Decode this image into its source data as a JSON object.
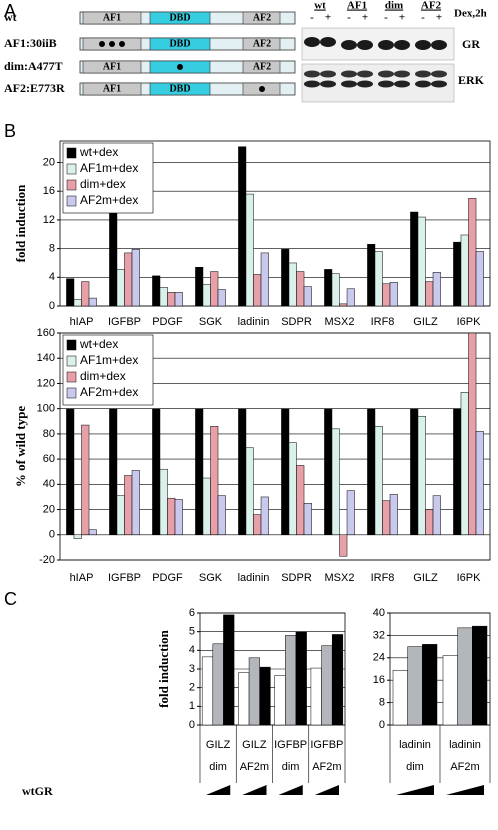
{
  "panels": [
    "A",
    "B",
    "C"
  ],
  "constructs": [
    {
      "label": "wt",
      "af1": "AF1",
      "dbd": "DBD",
      "af2": "AF2"
    },
    {
      "label": "AF1:30iiB",
      "dbd": "DBD",
      "af2": "AF2"
    },
    {
      "label": "dim:A477T",
      "af1": "AF1",
      "af2": "AF2"
    },
    {
      "label": "AF2:E773R",
      "af1": "AF1",
      "dbd": "DBD"
    }
  ],
  "blot": {
    "lanes": [
      "wt",
      "AF1",
      "dim",
      "AF2"
    ],
    "dex": [
      "-",
      "+"
    ],
    "treatment": "Dex,2h",
    "rows": [
      "GR",
      "ERK"
    ]
  },
  "wedge_label": "wtGR",
  "chart_data": [
    {
      "type": "bar",
      "y_label": "fold induction",
      "categories": [
        "hIAP",
        "IGFBP",
        "PDGF",
        "SGK",
        "ladinin",
        "SDPR",
        "MSX2",
        "IRF8",
        "GILZ",
        "I6PK"
      ],
      "series": [
        {
          "name": "wt+dex",
          "color": "#000000",
          "values": [
            3.8,
            14.5,
            4.2,
            5.4,
            22.2,
            7.9,
            5.1,
            8.6,
            13.1,
            8.9
          ]
        },
        {
          "name": "AF1m+dex",
          "color": "#daf0ea",
          "values": [
            0.9,
            5.1,
            2.6,
            3.0,
            15.6,
            6.0,
            4.5,
            7.6,
            12.4,
            9.9
          ]
        },
        {
          "name": "dim+dex",
          "color": "#e7a0a8",
          "values": [
            3.4,
            7.4,
            1.9,
            4.8,
            4.4,
            4.8,
            0.3,
            3.1,
            3.4,
            15.0
          ]
        },
        {
          "name": "AF2m+dex",
          "color": "#c9c9ee",
          "values": [
            1.1,
            7.9,
            1.9,
            2.3,
            7.4,
            2.7,
            2.4,
            3.3,
            4.7,
            7.6
          ]
        }
      ],
      "ylim": [
        0,
        23
      ],
      "yticks": [
        0,
        4,
        8,
        12,
        16,
        20
      ],
      "grid": true,
      "legend": "upper left"
    },
    {
      "type": "bar",
      "y_label": "% of wild type",
      "categories": [
        "hIAP",
        "IGFBP",
        "PDGF",
        "SGK",
        "ladinin",
        "SDPR",
        "MSX2",
        "IRF8",
        "GILZ",
        "I6PK"
      ],
      "series": [
        {
          "name": "wt+dex",
          "color": "#000000",
          "values": [
            100,
            100,
            100,
            100,
            100,
            100,
            100,
            100,
            100,
            100
          ]
        },
        {
          "name": "AF1m+dex",
          "color": "#daf0ea",
          "values": [
            -3,
            31,
            52,
            45,
            69,
            73,
            84,
            86,
            94,
            113
          ]
        },
        {
          "name": "dim+dex",
          "color": "#e7a0a8",
          "values": [
            87,
            47,
            29,
            86,
            16,
            55,
            -17,
            27,
            20,
            160
          ]
        },
        {
          "name": "AF2m+dex",
          "color": "#c9c9ee",
          "values": [
            4,
            51,
            28,
            31,
            30,
            25,
            35,
            32,
            31,
            82
          ]
        }
      ],
      "ylim": [
        -20,
        160
      ],
      "yticks": [
        -20,
        0,
        20,
        40,
        60,
        80,
        100,
        120,
        140,
        160
      ],
      "grid": true,
      "legend": "upper left"
    },
    {
      "type": "bar",
      "y_label": "fold induction",
      "categories": [
        "GILZ",
        "GILZ",
        "IGFBP",
        "IGFBP"
      ],
      "groups": [
        "dim",
        "AF2m",
        "dim",
        "AF2m"
      ],
      "series": [
        {
          "color": "#ffffff",
          "values": [
            3.65,
            2.8,
            2.65,
            3.05
          ]
        },
        {
          "color": "#b3b6ba",
          "values": [
            4.35,
            3.6,
            4.8,
            4.25
          ]
        },
        {
          "color": "#000000",
          "values": [
            5.9,
            3.1,
            5.0,
            4.85
          ]
        }
      ],
      "ylim": [
        0,
        6
      ],
      "yticks": [
        0,
        1,
        2,
        3,
        4,
        5,
        6
      ],
      "grid": true
    },
    {
      "type": "bar",
      "categories": [
        "ladinin",
        "ladinin"
      ],
      "groups": [
        "dim",
        "AF2m"
      ],
      "series": [
        {
          "color": "#ffffff",
          "values": [
            19.5,
            24.8
          ]
        },
        {
          "color": "#b3b6ba",
          "values": [
            28,
            34.7
          ]
        },
        {
          "color": "#000000",
          "values": [
            28.8,
            35.3
          ]
        }
      ],
      "ylim": [
        0,
        40
      ],
      "yticks": [
        0,
        8,
        16,
        24,
        32,
        40
      ],
      "grid": true
    }
  ]
}
